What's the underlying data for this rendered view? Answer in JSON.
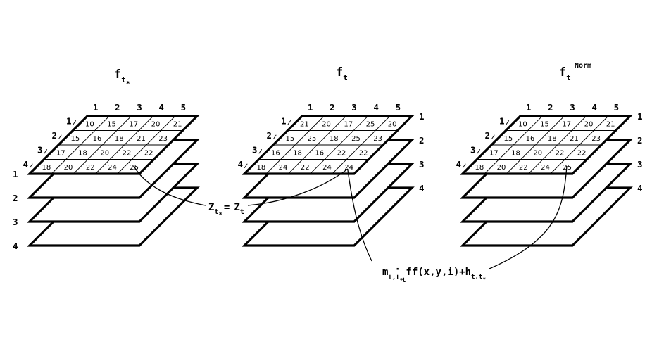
{
  "stacks": [
    {
      "title": {
        "base": "f",
        "sub": "t",
        "subsub": "*",
        "sup": ""
      },
      "col_labels": [
        "1",
        "2",
        "3",
        "4",
        "5"
      ],
      "row_labels": [
        "1",
        "2",
        "3",
        "4"
      ],
      "layer_labels": [
        "1",
        "2",
        "3",
        "4"
      ],
      "cells": [
        [
          "10",
          "15",
          "17",
          "20",
          "21"
        ],
        [
          "15",
          "16",
          "18",
          "21",
          "23"
        ],
        [
          "17",
          "18",
          "20",
          "22",
          "22"
        ],
        [
          "18",
          "20",
          "22",
          "24",
          "25"
        ]
      ]
    },
    {
      "title": {
        "base": "f",
        "sub": "t",
        "subsub": "",
        "sup": ""
      },
      "col_labels": [
        "1",
        "2",
        "3",
        "4",
        "5"
      ],
      "row_labels": [
        "1",
        "2",
        "3",
        "4"
      ],
      "layer_labels": [
        "1",
        "2",
        "3",
        "4"
      ],
      "cells": [
        [
          "21",
          "20",
          "17",
          "25",
          "20"
        ],
        [
          "15",
          "25",
          "18",
          "25",
          "23"
        ],
        [
          "16",
          "18",
          "16",
          "22",
          "22"
        ],
        [
          "18",
          "24",
          "22",
          "24",
          "24"
        ]
      ]
    },
    {
      "title": {
        "base": "f",
        "sub": "t",
        "subsub": "",
        "sup": "Norm"
      },
      "col_labels": [
        "1",
        "2",
        "3",
        "4",
        "5"
      ],
      "row_labels": [
        "1",
        "2",
        "3",
        "4"
      ],
      "layer_labels": [
        "1",
        "2",
        "3",
        "4"
      ],
      "cells": [
        [
          "10",
          "15",
          "17",
          "20",
          "21"
        ],
        [
          "15",
          "16",
          "18",
          "21",
          "23"
        ],
        [
          "17",
          "18",
          "20",
          "22",
          "22"
        ],
        [
          "18",
          "20",
          "22",
          "24",
          "25"
        ]
      ]
    }
  ],
  "equation": {
    "lhs": "Z",
    "lhs_sub": "t",
    "lhs_subsub": "*",
    "eq": "=",
    "rhs": "Z",
    "rhs_sub": "t"
  },
  "formula": {
    "m": "m",
    "m_sub": "t,t",
    "m_subsub": "*",
    "dot": "·",
    "f_sub": "t",
    "body": "f(x,y,i)+h",
    "h_sub": "t,t",
    "h_subsub": "*"
  }
}
